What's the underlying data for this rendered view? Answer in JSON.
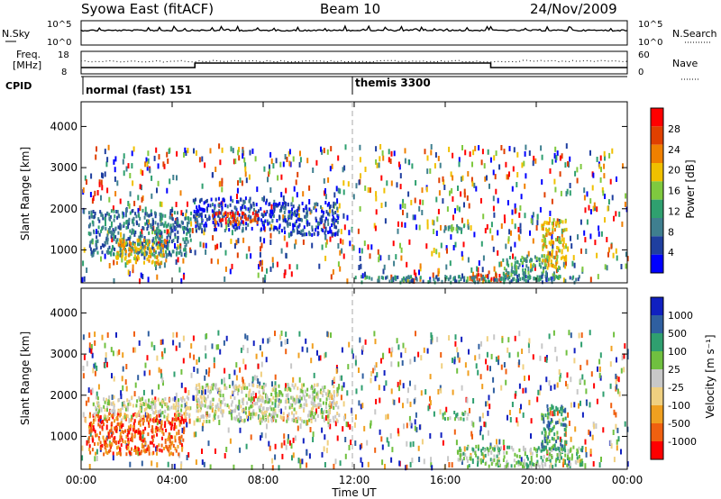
{
  "header": {
    "station": "Syowa East (fitACF)",
    "beam": "Beam 10",
    "date": "24/Nov/2009"
  },
  "nsky_panel": {
    "left_label": "N.Sky",
    "right_label": "N.Search",
    "ticks_left": [
      "10^5",
      "10^0"
    ],
    "ticks_right": [
      "10^5",
      "10^0"
    ]
  },
  "freq_panel": {
    "left_label_1": "Freq.",
    "left_label_2": "[MHz]",
    "right_label": "Nave",
    "ticks_left": [
      "18",
      "8"
    ],
    "ticks_right": [
      "60",
      "0"
    ],
    "freq_steps": [
      {
        "t_from": 0,
        "t_to": 5,
        "mhz": 10.8
      },
      {
        "t_from": 5,
        "t_to": 18,
        "mhz": 12.8
      },
      {
        "t_from": 18,
        "t_to": 24,
        "mhz": 10.8
      }
    ]
  },
  "cpid_panel": {
    "label": "CPID",
    "modes": [
      {
        "start_hour": 0,
        "name": "normal (fast) 151"
      },
      {
        "start_hour": 12,
        "name": "themis 3300"
      }
    ]
  },
  "colors": {
    "power": [
      "#0000ff",
      "#1f3f9f",
      "#3f7f8f",
      "#2fa06f",
      "#7fc93f",
      "#f0c000",
      "#f08000",
      "#e04000",
      "#ff0000"
    ],
    "velocity": [
      "#ff0000",
      "#f06010",
      "#f0a020",
      "#f0d080",
      "#c8c8c8",
      "#70c040",
      "#2f9f6f",
      "#2f5fa0",
      "#1020c0"
    ]
  },
  "chart_data": [
    {
      "type": "heatmap",
      "name": "power",
      "ylabel": "Slant Range [km]",
      "xlabel": "",
      "xlim": [
        0,
        24
      ],
      "ylim": [
        200,
        4600
      ],
      "yticks": [
        "1000",
        "2000",
        "3000",
        "4000"
      ],
      "colorbar_label": "Power [dB]",
      "colorbar_ticks": [
        "4",
        "8",
        "12",
        "16",
        "20",
        "24",
        "28"
      ],
      "regions": [
        {
          "t0": 0.3,
          "t1": 4.8,
          "r0": 900,
          "r1": 2000,
          "level": 2
        },
        {
          "t0": 1.5,
          "t1": 3.7,
          "r0": 700,
          "r1": 1300,
          "level": 5
        },
        {
          "t0": 4.9,
          "t1": 8.5,
          "r0": 1500,
          "r1": 2300,
          "level": 1
        },
        {
          "t0": 5.7,
          "t1": 7.8,
          "r0": 1650,
          "r1": 1950,
          "level": 7
        },
        {
          "t0": 8.5,
          "t1": 11.3,
          "r0": 1400,
          "r1": 2200,
          "level": 1
        },
        {
          "t0": 15.8,
          "t1": 17.0,
          "r0": 1450,
          "r1": 1650,
          "level": 3
        },
        {
          "t0": 17.0,
          "t1": 18.8,
          "r0": 300,
          "r1": 520,
          "level": 7
        },
        {
          "t0": 18.5,
          "t1": 21.0,
          "r0": 300,
          "r1": 900,
          "level": 3
        },
        {
          "t0": 20.2,
          "t1": 21.3,
          "r0": 600,
          "r1": 1800,
          "level": 5
        },
        {
          "t0": 12.0,
          "t1": 22.0,
          "r0": 250,
          "r1": 400,
          "level": 2
        }
      ]
    },
    {
      "type": "heatmap",
      "name": "velocity",
      "ylabel": "Slant Range [km]",
      "xlabel": "Time UT",
      "xlim": [
        0,
        24
      ],
      "ylim": [
        200,
        4600
      ],
      "xticks": [
        "00:00",
        "04:00",
        "08:00",
        "12:00",
        "16:00",
        "20:00",
        "00:00"
      ],
      "yticks": [
        "1000",
        "2000",
        "3000",
        "4000"
      ],
      "colorbar_label": "Velocity [m s⁻¹]",
      "colorbar_ticks": [
        "1000",
        "500",
        "100",
        "25",
        "-25",
        "-100",
        "-500",
        "-1000"
      ],
      "regions": [
        {
          "t0": 0.3,
          "t1": 4.5,
          "r0": 600,
          "r1": 1600,
          "level": 1
        },
        {
          "t0": 0.5,
          "t1": 4.8,
          "r0": 1500,
          "r1": 2000,
          "level": 4
        },
        {
          "t0": 5.0,
          "t1": 11.3,
          "r0": 1400,
          "r1": 2300,
          "level": 4
        },
        {
          "t0": 15.8,
          "t1": 17.0,
          "r0": 1450,
          "r1": 1650,
          "level": 5
        },
        {
          "t0": 16.5,
          "t1": 22.0,
          "r0": 300,
          "r1": 800,
          "level": 5
        },
        {
          "t0": 20.2,
          "t1": 21.3,
          "r0": 700,
          "r1": 1800,
          "level": 6
        }
      ]
    }
  ]
}
